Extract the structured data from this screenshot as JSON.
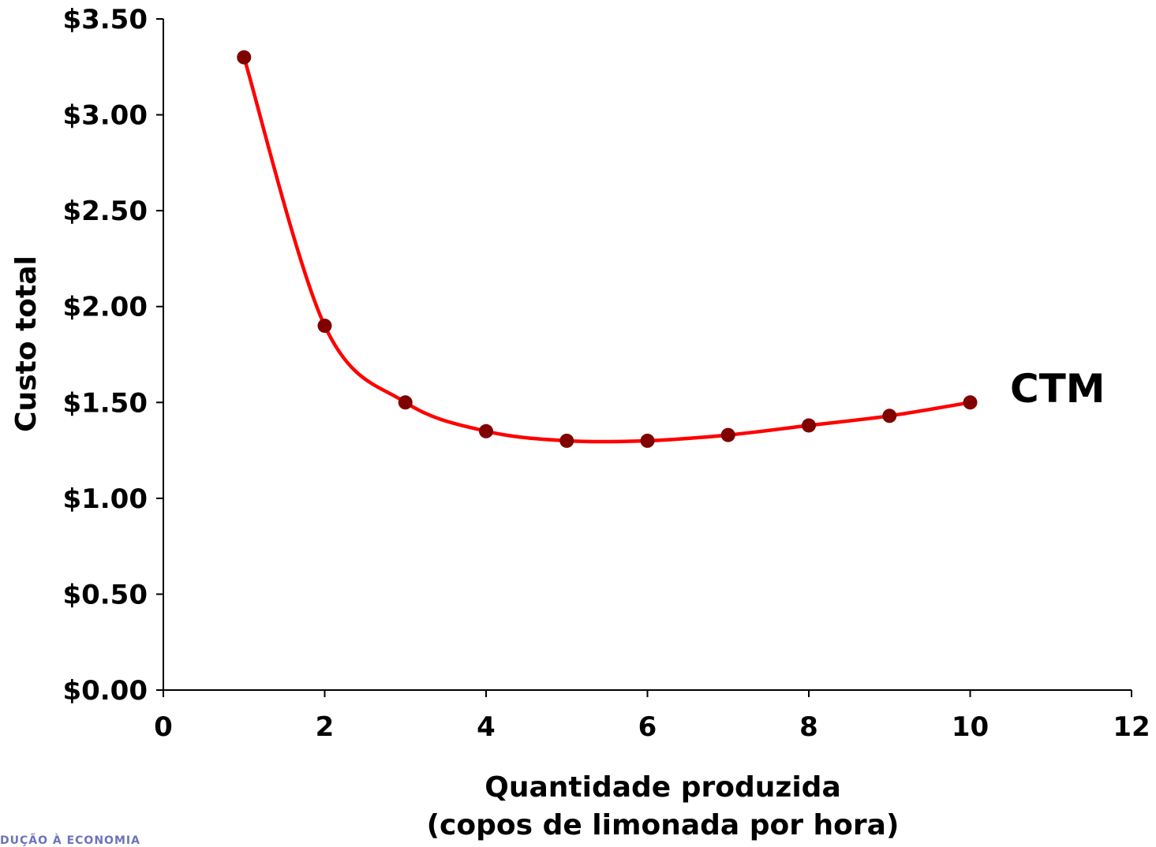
{
  "chart_data": {
    "type": "line",
    "ylabel": "Custo total",
    "xlabel_line1": "Quantidade produzida",
    "xlabel_line2": "(copos de limonada por hora)",
    "series_label": "CTM",
    "xlim": [
      0,
      12
    ],
    "ylim": [
      0,
      3.5
    ],
    "x_ticks": [
      0,
      2,
      4,
      6,
      8,
      10,
      12
    ],
    "x_tick_labels": [
      "0",
      "2",
      "4",
      "6",
      "8",
      "10",
      "12"
    ],
    "y_ticks": [
      0,
      0.5,
      1,
      1.5,
      2,
      2.5,
      3,
      3.5
    ],
    "y_tick_labels": [
      "$0.00",
      "$0.50",
      "$1.00",
      "$1.50",
      "$2.00",
      "$2.50",
      "$3.00",
      "$3.50"
    ],
    "grid": false,
    "series": [
      {
        "x": [
          1,
          2,
          3,
          4,
          5,
          6,
          7,
          8,
          9,
          10
        ],
        "y": [
          3.3,
          1.9,
          1.5,
          1.35,
          1.3,
          1.3,
          1.33,
          1.38,
          1.43,
          1.5
        ]
      }
    ],
    "colors": {
      "line": "#ff0000",
      "marker": "#800000",
      "axis": "#000000"
    }
  },
  "footer_text": "DUÇÃO À ECONOMIA"
}
